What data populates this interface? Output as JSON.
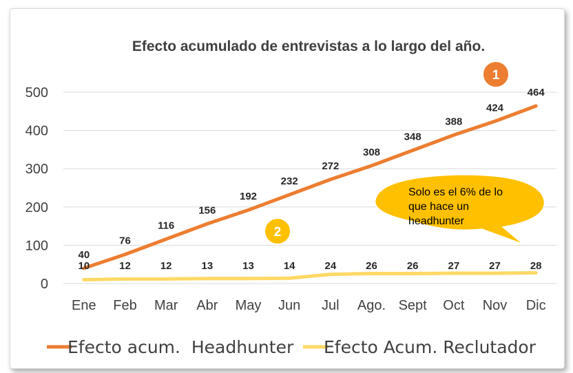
{
  "chart_data": {
    "type": "line",
    "title": "Efecto acumulado de entrevistas a lo largo del año.",
    "categories": [
      "Ene",
      "Feb",
      "Mar",
      "Abr",
      "May",
      "Jun",
      "Jul",
      "Ago.",
      "Sept",
      "Oct",
      "Nov",
      "Dic"
    ],
    "ylim": [
      0,
      500
    ],
    "yticks": [
      0,
      100,
      200,
      300,
      400,
      500
    ],
    "grid": true,
    "legend_position": "bottom",
    "series": [
      {
        "name": "Efecto acum.  Headhunter",
        "color": "#ED7D31",
        "values": [
          40,
          76,
          116,
          156,
          192,
          232,
          272,
          308,
          348,
          388,
          424,
          464
        ]
      },
      {
        "name": "Efecto Acum. Reclutador",
        "color": "#FFD966",
        "values": [
          10,
          12,
          12,
          13,
          13,
          14,
          24,
          26,
          26,
          27,
          27,
          28
        ]
      }
    ],
    "annotations": {
      "marker_1": "1",
      "marker_2": "2",
      "callout_lines": [
        "Solo es el 6% de lo",
        "que hace un",
        "headhunter"
      ]
    }
  },
  "colors": {
    "marker_1_fill": "#ED7D31",
    "marker_2_fill": "#FFC000",
    "callout_fill": "#FFC000",
    "gridline": "#d9d9d9"
  }
}
